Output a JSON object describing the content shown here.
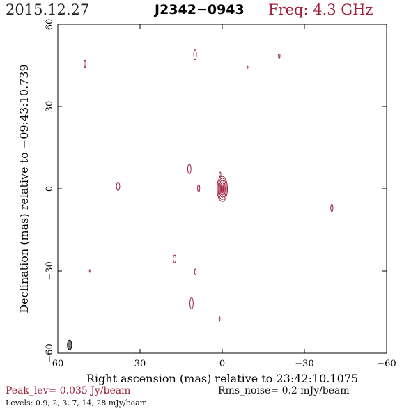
{
  "header": {
    "date": "2015.12.27",
    "source": "J2342−0943",
    "freq": "Freq: 4.3 GHz"
  },
  "colors": {
    "contour": "#a0203c",
    "beam": "#808080",
    "axis": "#000000"
  },
  "chart_data": {
    "type": "contour",
    "xlabel": "Right ascension (mas) relative to 23:42:10.1075",
    "ylabel": "Declination (mas) relative to −09:43:10.739",
    "xlim": [
      60,
      -60
    ],
    "ylim": [
      -60,
      60
    ],
    "x_ticks": [
      60,
      30,
      0,
      -30,
      -60
    ],
    "x_tick_labels": [
      "60",
      "30",
      "0",
      "−30",
      "−60"
    ],
    "y_ticks": [
      60,
      30,
      0,
      -30,
      -60
    ],
    "y_tick_labels": [
      "60",
      "30",
      "0",
      "−30",
      "−60"
    ],
    "core": {
      "x": 0,
      "y": 0,
      "contours": [
        {
          "rx": 1.9,
          "ry": 4.6
        },
        {
          "rx": 1.5,
          "ry": 3.9
        },
        {
          "rx": 1.1,
          "ry": 3.1
        },
        {
          "rx": 0.75,
          "ry": 2.3
        },
        {
          "rx": 0.45,
          "ry": 1.5
        },
        {
          "rx": 0.2,
          "ry": 0.8
        }
      ]
    },
    "components": [
      {
        "x": 0.8,
        "y": 5.2,
        "rx": 0.3,
        "ry": 0.9
      },
      {
        "x": 50.1,
        "y": 45.6,
        "rx": 0.3,
        "ry": 1.4
      },
      {
        "x": 9.9,
        "y": 48.9,
        "rx": 0.5,
        "ry": 1.8
      },
      {
        "x": -9.2,
        "y": 44.3,
        "rx": 0.2,
        "ry": 0.4
      },
      {
        "x": -20.8,
        "y": 48.5,
        "rx": 0.3,
        "ry": 0.8
      },
      {
        "x": 12.0,
        "y": 7.2,
        "rx": 0.6,
        "ry": 1.7
      },
      {
        "x": 38.0,
        "y": 0.9,
        "rx": 0.6,
        "ry": 1.5
      },
      {
        "x": 8.6,
        "y": 0.2,
        "rx": 0.4,
        "ry": 1.2
      },
      {
        "x": -40.0,
        "y": -7.0,
        "rx": 0.4,
        "ry": 1.3
      },
      {
        "x": 17.4,
        "y": -25.6,
        "rx": 0.5,
        "ry": 1.4
      },
      {
        "x": 48.3,
        "y": -30.0,
        "rx": 0.2,
        "ry": 0.5
      },
      {
        "x": 9.8,
        "y": -30.3,
        "rx": 0.3,
        "ry": 1.1
      },
      {
        "x": 11.2,
        "y": -41.8,
        "rx": 0.6,
        "ry": 2.0
      },
      {
        "x": 1.0,
        "y": -47.5,
        "rx": 0.2,
        "ry": 0.8
      }
    ],
    "beam": {
      "x": 55.7,
      "y": -57.0,
      "rx": 0.8,
      "ry": 1.8
    }
  },
  "footer": {
    "peak": "Peak_lev=  0.035 Jy/beam",
    "rms": "Rms_noise=   0.2 mJy/beam",
    "levels": "Levels: 0.9,    2,    3,    7,   14,   28 mJy/beam"
  }
}
